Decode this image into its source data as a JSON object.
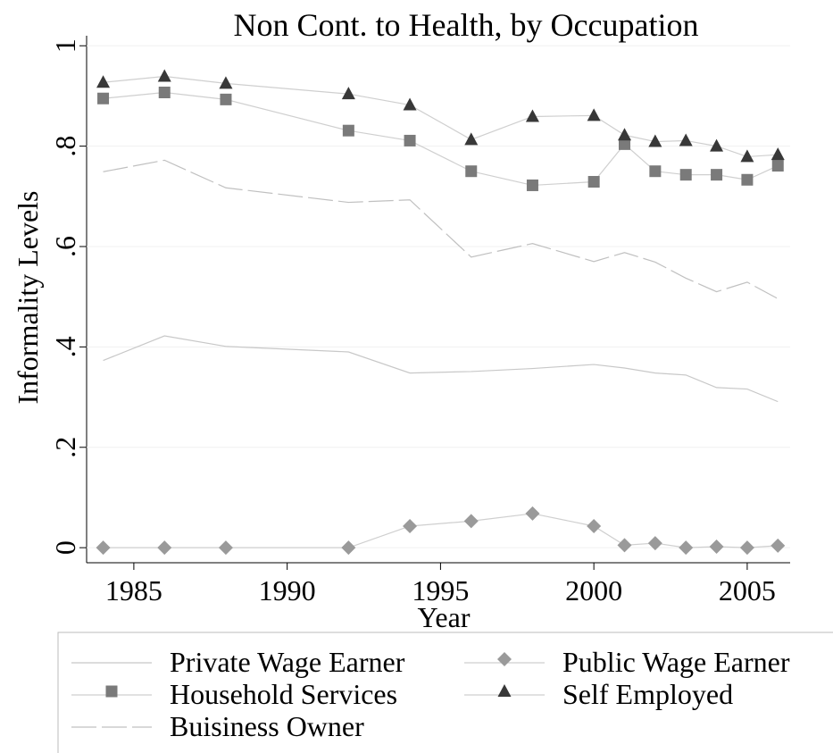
{
  "chart_data": {
    "type": "line",
    "title": "Non Cont. to Health, by Occupation",
    "x_label": "Year",
    "y_label": "Informality Levels",
    "x": [
      1984,
      1986,
      1988,
      1992,
      1994,
      1996,
      1998,
      2000,
      2001,
      2002,
      2003,
      2004,
      2005,
      2006
    ],
    "series": [
      {
        "name": "Private Wage Earner",
        "color": "#c8c8c8",
        "marker": "none",
        "dash": false,
        "values": [
          0.373,
          0.422,
          0.401,
          0.39,
          0.348,
          0.351,
          0.357,
          0.365,
          0.358,
          0.348,
          0.344,
          0.319,
          0.316,
          0.291
        ]
      },
      {
        "name": "Public Wage Earner",
        "color": "#9a9a9a",
        "marker": "diamond",
        "dash": false,
        "values": [
          0,
          0,
          0,
          0,
          0.043,
          0.053,
          0.068,
          0.043,
          0.005,
          0.009,
          0,
          0.002,
          0,
          0.004
        ]
      },
      {
        "name": "Household Services",
        "color": "#7a7a7a",
        "marker": "square",
        "dash": false,
        "values": [
          0.895,
          0.907,
          0.893,
          0.831,
          0.811,
          0.75,
          0.722,
          0.729,
          0.804,
          0.75,
          0.743,
          0.743,
          0.733,
          0.761
        ]
      },
      {
        "name": "Self Employed",
        "color": "#383838",
        "marker": "triangle",
        "dash": false,
        "values": [
          0.927,
          0.939,
          0.925,
          0.904,
          0.882,
          0.813,
          0.859,
          0.861,
          0.822,
          0.809,
          0.811,
          0.8,
          0.779,
          0.783
        ]
      },
      {
        "name": "Buisiness Owner",
        "color": "#c0c0c0",
        "marker": "none",
        "dash": true,
        "values": [
          0.749,
          0.772,
          0.717,
          0.688,
          0.693,
          0.579,
          0.606,
          0.57,
          0.588,
          0.569,
          0.537,
          0.51,
          0.529,
          0.496
        ]
      }
    ],
    "xlim": [
      1983.46,
      2006.4
    ],
    "xticks": [
      1985,
      1990,
      1995,
      2000,
      2005
    ],
    "ylim": [
      -0.03,
      1.02
    ],
    "yticks": [
      0,
      {
        "value": 0.2,
        "label": ".2"
      },
      {
        "value": 0.4,
        "label": ".4"
      },
      {
        "value": 0.6,
        "label": ".6"
      },
      {
        "value": 0.8,
        "label": ".8"
      },
      1
    ],
    "grid": true,
    "legend": "bottom"
  }
}
